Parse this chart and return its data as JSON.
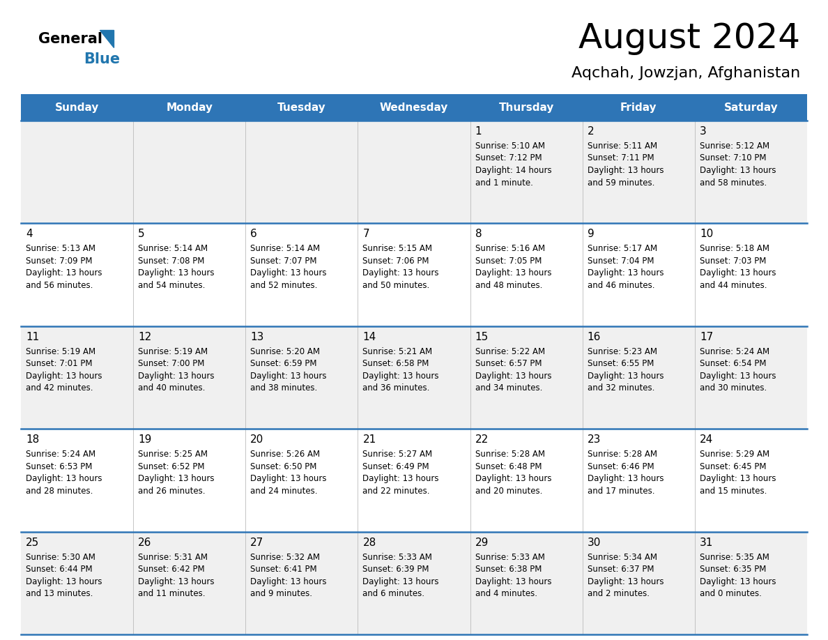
{
  "title": "August 2024",
  "subtitle": "Aqchah, Jowzjan, Afghanistan",
  "days_of_week": [
    "Sunday",
    "Monday",
    "Tuesday",
    "Wednesday",
    "Thursday",
    "Friday",
    "Saturday"
  ],
  "header_bg": "#2E75B6",
  "header_text": "#FFFFFF",
  "cell_bg_white": "#FFFFFF",
  "cell_bg_gray": "#F0F0F0",
  "grid_line_color": "#2E75B6",
  "text_color": "#000000",
  "logo_general_color": "#000000",
  "logo_blue_color": "#2176AE",
  "calendar_data": [
    [
      null,
      null,
      null,
      null,
      {
        "day": 1,
        "sunrise": "5:10 AM",
        "sunset": "7:12 PM",
        "daylight": "14 hours and 1 minute."
      },
      {
        "day": 2,
        "sunrise": "5:11 AM",
        "sunset": "7:11 PM",
        "daylight": "13 hours and 59 minutes."
      },
      {
        "day": 3,
        "sunrise": "5:12 AM",
        "sunset": "7:10 PM",
        "daylight": "13 hours and 58 minutes."
      }
    ],
    [
      {
        "day": 4,
        "sunrise": "5:13 AM",
        "sunset": "7:09 PM",
        "daylight": "13 hours and 56 minutes."
      },
      {
        "day": 5,
        "sunrise": "5:14 AM",
        "sunset": "7:08 PM",
        "daylight": "13 hours and 54 minutes."
      },
      {
        "day": 6,
        "sunrise": "5:14 AM",
        "sunset": "7:07 PM",
        "daylight": "13 hours and 52 minutes."
      },
      {
        "day": 7,
        "sunrise": "5:15 AM",
        "sunset": "7:06 PM",
        "daylight": "13 hours and 50 minutes."
      },
      {
        "day": 8,
        "sunrise": "5:16 AM",
        "sunset": "7:05 PM",
        "daylight": "13 hours and 48 minutes."
      },
      {
        "day": 9,
        "sunrise": "5:17 AM",
        "sunset": "7:04 PM",
        "daylight": "13 hours and 46 minutes."
      },
      {
        "day": 10,
        "sunrise": "5:18 AM",
        "sunset": "7:03 PM",
        "daylight": "13 hours and 44 minutes."
      }
    ],
    [
      {
        "day": 11,
        "sunrise": "5:19 AM",
        "sunset": "7:01 PM",
        "daylight": "13 hours and 42 minutes."
      },
      {
        "day": 12,
        "sunrise": "5:19 AM",
        "sunset": "7:00 PM",
        "daylight": "13 hours and 40 minutes."
      },
      {
        "day": 13,
        "sunrise": "5:20 AM",
        "sunset": "6:59 PM",
        "daylight": "13 hours and 38 minutes."
      },
      {
        "day": 14,
        "sunrise": "5:21 AM",
        "sunset": "6:58 PM",
        "daylight": "13 hours and 36 minutes."
      },
      {
        "day": 15,
        "sunrise": "5:22 AM",
        "sunset": "6:57 PM",
        "daylight": "13 hours and 34 minutes."
      },
      {
        "day": 16,
        "sunrise": "5:23 AM",
        "sunset": "6:55 PM",
        "daylight": "13 hours and 32 minutes."
      },
      {
        "day": 17,
        "sunrise": "5:24 AM",
        "sunset": "6:54 PM",
        "daylight": "13 hours and 30 minutes."
      }
    ],
    [
      {
        "day": 18,
        "sunrise": "5:24 AM",
        "sunset": "6:53 PM",
        "daylight": "13 hours and 28 minutes."
      },
      {
        "day": 19,
        "sunrise": "5:25 AM",
        "sunset": "6:52 PM",
        "daylight": "13 hours and 26 minutes."
      },
      {
        "day": 20,
        "sunrise": "5:26 AM",
        "sunset": "6:50 PM",
        "daylight": "13 hours and 24 minutes."
      },
      {
        "day": 21,
        "sunrise": "5:27 AM",
        "sunset": "6:49 PM",
        "daylight": "13 hours and 22 minutes."
      },
      {
        "day": 22,
        "sunrise": "5:28 AM",
        "sunset": "6:48 PM",
        "daylight": "13 hours and 20 minutes."
      },
      {
        "day": 23,
        "sunrise": "5:28 AM",
        "sunset": "6:46 PM",
        "daylight": "13 hours and 17 minutes."
      },
      {
        "day": 24,
        "sunrise": "5:29 AM",
        "sunset": "6:45 PM",
        "daylight": "13 hours and 15 minutes."
      }
    ],
    [
      {
        "day": 25,
        "sunrise": "5:30 AM",
        "sunset": "6:44 PM",
        "daylight": "13 hours and 13 minutes."
      },
      {
        "day": 26,
        "sunrise": "5:31 AM",
        "sunset": "6:42 PM",
        "daylight": "13 hours and 11 minutes."
      },
      {
        "day": 27,
        "sunrise": "5:32 AM",
        "sunset": "6:41 PM",
        "daylight": "13 hours and 9 minutes."
      },
      {
        "day": 28,
        "sunrise": "5:33 AM",
        "sunset": "6:39 PM",
        "daylight": "13 hours and 6 minutes."
      },
      {
        "day": 29,
        "sunrise": "5:33 AM",
        "sunset": "6:38 PM",
        "daylight": "13 hours and 4 minutes."
      },
      {
        "day": 30,
        "sunrise": "5:34 AM",
        "sunset": "6:37 PM",
        "daylight": "13 hours and 2 minutes."
      },
      {
        "day": 31,
        "sunrise": "5:35 AM",
        "sunset": "6:35 PM",
        "daylight": "13 hours and 0 minutes."
      }
    ]
  ]
}
